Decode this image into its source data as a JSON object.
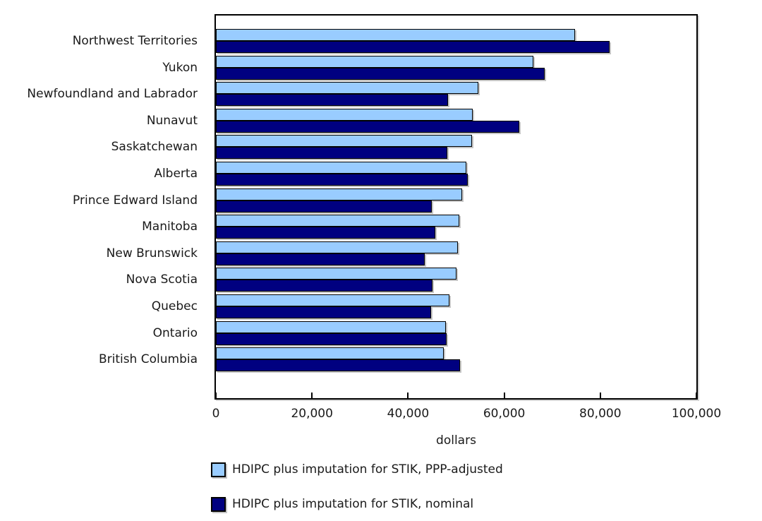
{
  "chart_data": {
    "type": "bar",
    "orientation": "horizontal",
    "xlabel": "dollars",
    "xlim": [
      0,
      100000
    ],
    "xticks": [
      0,
      20000,
      40000,
      60000,
      80000,
      100000
    ],
    "xtick_labels": [
      "0",
      "20,000",
      "40,000",
      "60,000",
      "80,000",
      "100,000"
    ],
    "grid": false,
    "legend_position": "bottom-left",
    "bar_border_color": "#000000",
    "categories": [
      "Northwest Territories",
      "Yukon",
      "Newfoundland and Labrador",
      "Nunavut",
      "Saskatchewan",
      "Alberta",
      "Prince Edward Island",
      "Manitoba",
      "New Brunswick",
      "Nova Scotia",
      "Quebec",
      "Ontario",
      "British Columbia"
    ],
    "series": [
      {
        "name": "HDIPC plus imputation for STIK, PPP-adjusted",
        "color": "#99CCFF",
        "values": [
          74800,
          66100,
          54600,
          53400,
          53300,
          52200,
          51200,
          50600,
          50300,
          50100,
          48600,
          47800,
          47400
        ]
      },
      {
        "name": "HDIPC plus imputation for STIK, nominal",
        "color": "#000080",
        "values": [
          81900,
          68400,
          48300,
          63200,
          48200,
          52400,
          45000,
          45600,
          43500,
          45100,
          44800,
          48000,
          50800
        ]
      }
    ]
  }
}
